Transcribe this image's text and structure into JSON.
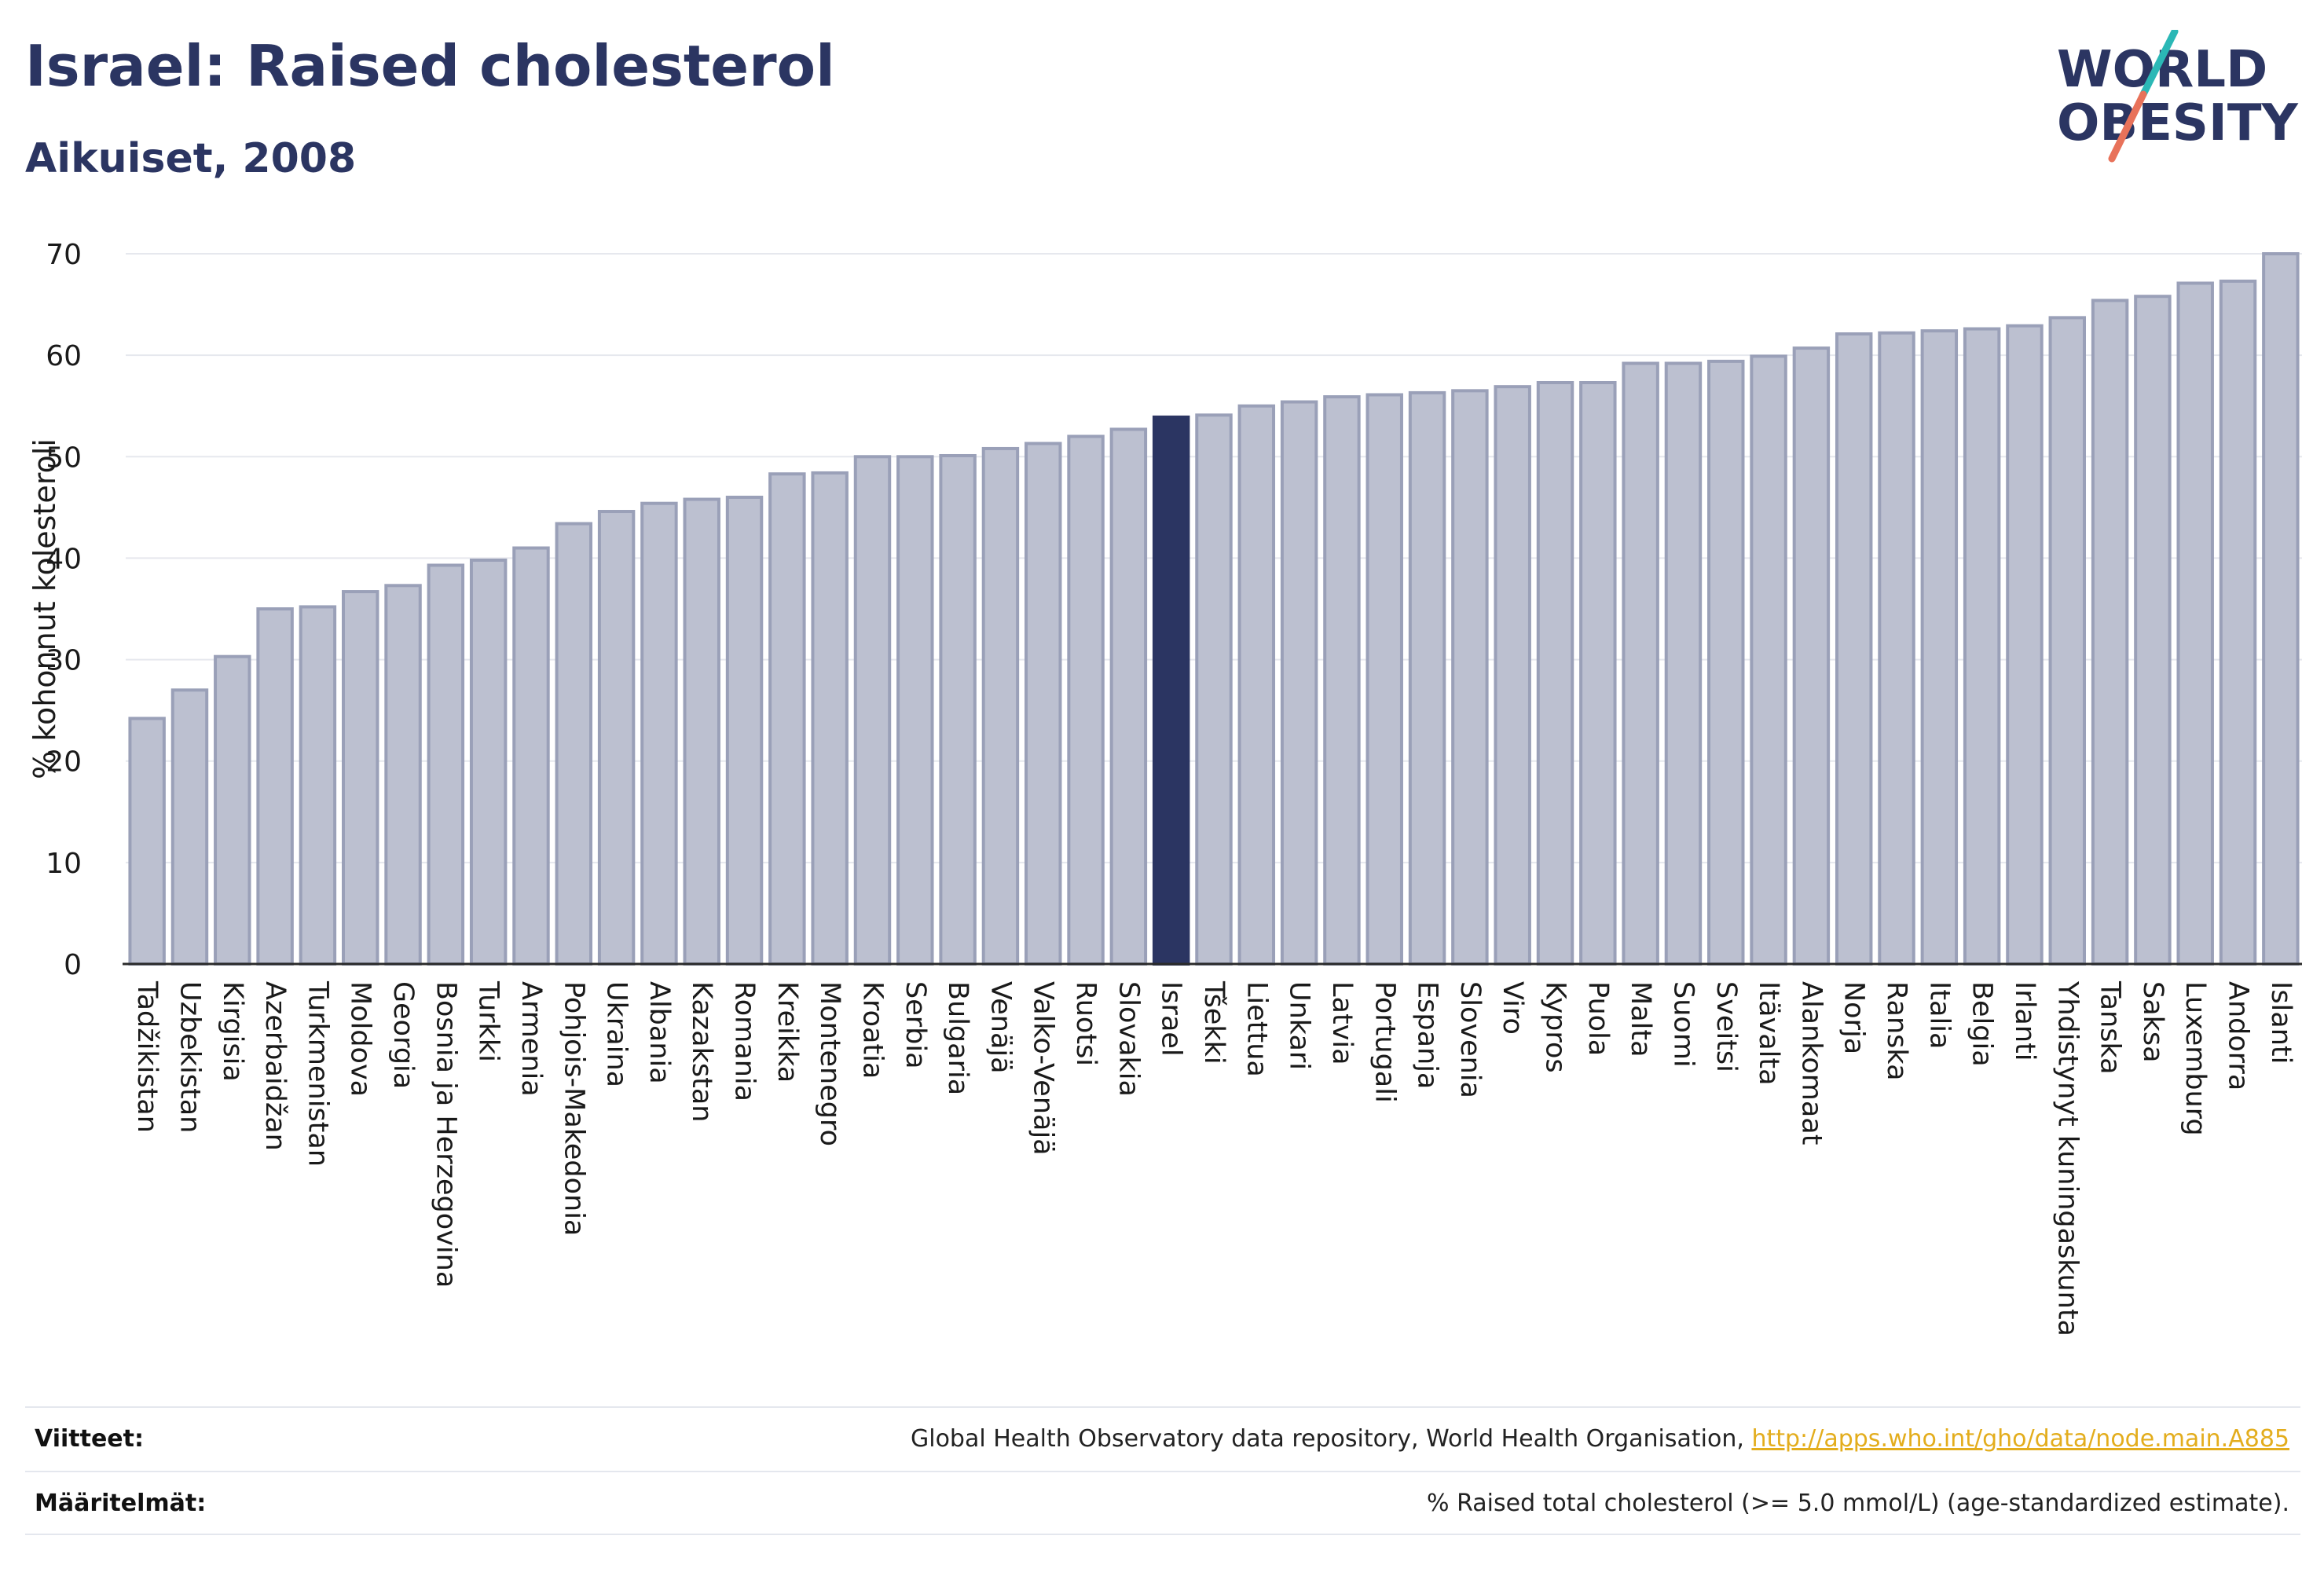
{
  "header": {
    "title": "Israel: Raised cholesterol",
    "subtitle": "Aikuiset, 2008"
  },
  "logo": {
    "line1": "WORLD",
    "line2": "OBESITY",
    "slash_colors": [
      "#2bb8b6",
      "#e8725a"
    ]
  },
  "colors": {
    "bar": "#bcc0d0",
    "bar_stroke": "#9aa0b8",
    "highlight": "#2b3562",
    "axis_text": "#1a1a1a",
    "grid": "#e6e8ee"
  },
  "chart_data": {
    "type": "bar",
    "ylabel": "% kohonnut kolesteroli",
    "ylim": [
      0,
      70
    ],
    "yticks": [
      0,
      10,
      20,
      30,
      40,
      50,
      60,
      70
    ],
    "grid": true,
    "highlight": "Israel",
    "categories": [
      "Tadžikistan",
      "Uzbekistan",
      "Kirgisia",
      "Azerbaidžan",
      "Turkmenistan",
      "Moldova",
      "Georgia",
      "Bosnia ja Herzegovina",
      "Turkki",
      "Armenia",
      "Pohjois-Makedonia",
      "Ukraina",
      "Albania",
      "Kazakstan",
      "Romania",
      "Kreikka",
      "Montenegro",
      "Kroatia",
      "Serbia",
      "Bulgaria",
      "Venäjä",
      "Valko-Venäjä",
      "Ruotsi",
      "Slovakia",
      "Israel",
      "Tšekki",
      "Liettua",
      "Unkari",
      "Latvia",
      "Portugali",
      "Espanja",
      "Slovenia",
      "Viro",
      "Kypros",
      "Puola",
      "Malta",
      "Suomi",
      "Sveitsi",
      "Itävalta",
      "Alankomaat",
      "Norja",
      "Ranska",
      "Italia",
      "Belgia",
      "Irlanti",
      "Yhdistynyt kuningaskunta",
      "Tanska",
      "Saksa",
      "Luxemburg",
      "Andorra",
      "Islanti"
    ],
    "values": [
      24.2,
      27.0,
      30.3,
      35.0,
      35.2,
      36.7,
      37.3,
      39.3,
      39.8,
      41.0,
      43.4,
      44.6,
      45.4,
      45.8,
      46.0,
      48.3,
      48.4,
      50.0,
      50.0,
      50.1,
      50.8,
      51.3,
      52.0,
      52.7,
      53.9,
      54.1,
      55.0,
      55.4,
      55.9,
      56.1,
      56.3,
      56.5,
      56.9,
      57.3,
      57.3,
      59.2,
      59.2,
      59.4,
      59.9,
      60.7,
      62.1,
      62.2,
      62.4,
      62.6,
      62.9,
      63.7,
      65.4,
      65.8,
      67.1,
      67.3,
      70.0
    ]
  },
  "footer": {
    "sources_label": "Viitteet:",
    "sources_text": "Global Health Observatory data repository, World Health Organisation,",
    "sources_link": "http://apps.who.int/gho/data/node.main.A885",
    "definitions_label": "Määritelmät:",
    "definitions_text": "% Raised total cholesterol (>= 5.0 mmol/L) (age-standardized estimate)."
  }
}
